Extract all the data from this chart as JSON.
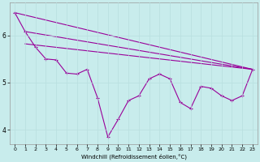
{
  "xlabel": "Windchill (Refroidissement éolien,°C)",
  "background_color": "#c8ecec",
  "line_color": "#990099",
  "grid_color": "#b8dede",
  "xlim": [
    -0.5,
    23.5
  ],
  "ylim": [
    3.7,
    6.7
  ],
  "yticks": [
    4,
    5,
    6
  ],
  "xticks": [
    0,
    1,
    2,
    3,
    4,
    5,
    6,
    7,
    8,
    9,
    10,
    11,
    12,
    13,
    14,
    15,
    16,
    17,
    18,
    19,
    20,
    21,
    22,
    23
  ],
  "line1_x": [
    0,
    23
  ],
  "line1_y": [
    6.48,
    5.28
  ],
  "line2_x": [
    1,
    23
  ],
  "line2_y": [
    6.08,
    5.28
  ],
  "line3_x": [
    1,
    23
  ],
  "line3_y": [
    5.82,
    5.28
  ],
  "curve_x": [
    0,
    1,
    2,
    3,
    4,
    5,
    6,
    7,
    8,
    9,
    10,
    11,
    12,
    13,
    14,
    15,
    16,
    17,
    18,
    19,
    20,
    21,
    22,
    23
  ],
  "curve_y": [
    6.48,
    6.08,
    5.75,
    5.5,
    5.48,
    5.2,
    5.18,
    5.28,
    4.68,
    3.85,
    4.22,
    4.62,
    4.72,
    5.08,
    5.18,
    5.08,
    4.58,
    4.45,
    4.92,
    4.88,
    4.72,
    4.62,
    4.72,
    5.28
  ]
}
